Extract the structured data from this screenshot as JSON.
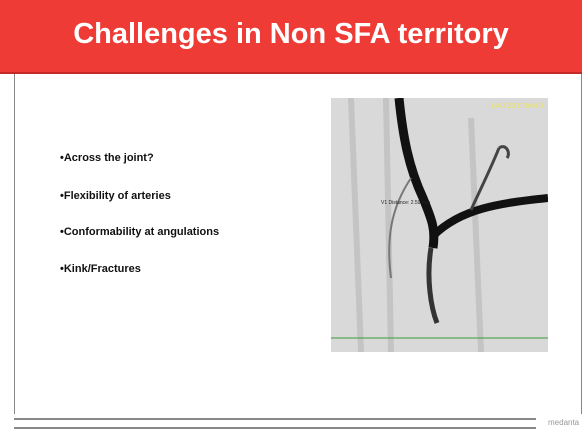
{
  "header": {
    "title": "Challenges in Non SFA territory"
  },
  "bullets": [
    "•Across the joint?",
    "•Flexibility of arteries",
    "•Conformability at angulations",
    "•Kink/Fractures"
  ],
  "image": {
    "corner_label": "LAO 23 CRAN 0",
    "measure_label": "V1 Distance: 2.59 mm"
  },
  "footer": {
    "logo": "medanta"
  }
}
